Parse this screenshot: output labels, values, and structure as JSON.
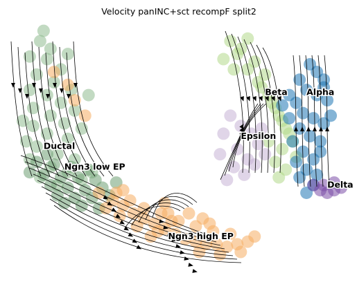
{
  "chart_data": {
    "type": "scatter",
    "title": "Velocity panINC+sct recompF split2",
    "xlabel": "",
    "ylabel": "",
    "xlim": [
      0,
      100
    ],
    "ylim": [
      0,
      100
    ],
    "grid": false,
    "legend": "on data",
    "overlay": "velocity streamlines",
    "clusters": [
      {
        "name": "Ductal",
        "color": "#8fbc8f",
        "label_xy": [
          11,
          49
        ],
        "points": [
          [
            10,
            91
          ],
          [
            7,
            85
          ],
          [
            12,
            84
          ],
          [
            16,
            80
          ],
          [
            9,
            78
          ],
          [
            14,
            75
          ],
          [
            7,
            72
          ],
          [
            19,
            72
          ],
          [
            12,
            70
          ],
          [
            16,
            67
          ],
          [
            8,
            65
          ],
          [
            20,
            64
          ],
          [
            13,
            62
          ],
          [
            17,
            59
          ],
          [
            8,
            58
          ],
          [
            22,
            57
          ],
          [
            12,
            55
          ],
          [
            18,
            53
          ],
          [
            9,
            50
          ],
          [
            15,
            47
          ],
          [
            20,
            45
          ],
          [
            7,
            45
          ],
          [
            13,
            42
          ],
          [
            18,
            40
          ],
          [
            10,
            38
          ],
          [
            22,
            37
          ],
          [
            15,
            35
          ],
          [
            25,
            40
          ],
          [
            5,
            60
          ],
          [
            11,
            95
          ],
          [
            13,
            88
          ],
          [
            18,
            86
          ],
          [
            24,
            70
          ],
          [
            6,
            52
          ]
        ]
      },
      {
        "name": "Ngn3 low EP",
        "color": "#6d9f73",
        "label_xy": [
          17,
          41
        ],
        "points": [
          [
            9,
            44
          ],
          [
            14,
            43
          ],
          [
            19,
            42
          ],
          [
            24,
            41
          ],
          [
            11,
            39
          ],
          [
            16,
            38
          ],
          [
            21,
            38
          ],
          [
            26,
            37
          ],
          [
            13,
            35
          ],
          [
            18,
            34
          ],
          [
            23,
            33
          ],
          [
            28,
            34
          ],
          [
            15,
            31
          ],
          [
            20,
            30
          ],
          [
            25,
            30
          ],
          [
            30,
            31
          ],
          [
            17,
            28
          ],
          [
            22,
            27
          ],
          [
            27,
            26
          ],
          [
            12,
            47
          ],
          [
            7,
            40
          ],
          [
            32,
            36
          ]
        ]
      },
      {
        "name": "Ngn3 high EP",
        "color": "#f5ad62",
        "label_xy": [
          47,
          14
        ],
        "points": [
          [
            14,
            79
          ],
          [
            18,
            74
          ],
          [
            20,
            68
          ],
          [
            23,
            62
          ],
          [
            27,
            32
          ],
          [
            31,
            29
          ],
          [
            34,
            27
          ],
          [
            37,
            24
          ],
          [
            40,
            22
          ],
          [
            43,
            20
          ],
          [
            46,
            18
          ],
          [
            49,
            16
          ],
          [
            52,
            14
          ],
          [
            55,
            13
          ],
          [
            58,
            12
          ],
          [
            61,
            12
          ],
          [
            64,
            11
          ],
          [
            67,
            12
          ],
          [
            70,
            13
          ],
          [
            72,
            15
          ],
          [
            60,
            17
          ],
          [
            55,
            19
          ],
          [
            50,
            21
          ],
          [
            45,
            24
          ],
          [
            40,
            26
          ],
          [
            36,
            29
          ],
          [
            32,
            32
          ],
          [
            46,
            28
          ],
          [
            47,
            24
          ],
          [
            48,
            21
          ],
          [
            44,
            17
          ],
          [
            42,
            15
          ],
          [
            56,
            9
          ],
          [
            62,
            8
          ],
          [
            68,
            9
          ],
          [
            65,
            16
          ],
          [
            59,
            20
          ],
          [
            38,
            19
          ],
          [
            33,
            23
          ],
          [
            29,
            26
          ],
          [
            34,
            33
          ],
          [
            53,
            24
          ],
          [
            57,
            22
          ]
        ]
      },
      {
        "name": "Beta",
        "color": "#b3d98a",
        "label_xy": [
          75,
          70
        ],
        "points": [
          [
            65,
            91
          ],
          [
            67,
            86
          ],
          [
            70,
            80
          ],
          [
            73,
            75
          ],
          [
            76,
            70
          ],
          [
            78,
            65
          ],
          [
            80,
            60
          ],
          [
            82,
            55
          ],
          [
            80,
            49
          ],
          [
            78,
            44
          ],
          [
            81,
            41
          ],
          [
            79,
            38
          ],
          [
            68,
            88
          ],
          [
            72,
            83
          ],
          [
            75,
            78
          ],
          [
            74,
            73
          ],
          [
            77,
            67
          ],
          [
            79,
            62
          ],
          [
            81,
            57
          ],
          [
            83,
            52
          ],
          [
            76,
            52
          ],
          [
            84,
            46
          ],
          [
            70,
            92
          ],
          [
            63,
            84
          ],
          [
            66,
            80
          ]
        ]
      },
      {
        "name": "Epsilon",
        "color": "#c7b3d6",
        "label_xy": [
          68,
          53
        ],
        "points": [
          [
            65,
            62
          ],
          [
            68,
            58
          ],
          [
            71,
            55
          ],
          [
            73,
            51
          ],
          [
            75,
            47
          ],
          [
            70,
            45
          ],
          [
            66,
            42
          ],
          [
            64,
            37
          ],
          [
            69,
            39
          ],
          [
            72,
            43
          ],
          [
            67,
            49
          ],
          [
            63,
            55
          ],
          [
            74,
            57
          ],
          [
            62,
            47
          ]
        ]
      },
      {
        "name": "Alpha",
        "color": "#1f77b4",
        "label_xy": [
          87,
          70
        ],
        "points": [
          [
            88,
            82
          ],
          [
            90,
            79
          ],
          [
            92,
            76
          ],
          [
            85,
            76
          ],
          [
            87,
            72
          ],
          [
            90,
            70
          ],
          [
            93,
            68
          ],
          [
            84,
            67
          ],
          [
            86,
            63
          ],
          [
            89,
            61
          ],
          [
            92,
            59
          ],
          [
            82,
            61
          ],
          [
            85,
            57
          ],
          [
            88,
            54
          ],
          [
            91,
            52
          ],
          [
            83,
            52
          ],
          [
            86,
            48
          ],
          [
            89,
            45
          ],
          [
            87,
            41
          ],
          [
            90,
            39
          ],
          [
            85,
            38
          ],
          [
            89,
            35
          ],
          [
            87,
            32
          ],
          [
            84,
            44
          ],
          [
            91,
            48
          ],
          [
            94,
            62
          ],
          [
            92,
            73
          ],
          [
            82,
            70
          ],
          [
            80,
            66
          ]
        ]
      },
      {
        "name": "Delta",
        "color": "#7b4fa8",
        "label_xy": [
          93,
          34
        ],
        "points": [
          [
            89,
            35
          ],
          [
            91,
            33
          ],
          [
            93,
            32
          ],
          [
            95,
            33
          ],
          [
            97,
            34
          ],
          [
            92,
            35
          ],
          [
            95,
            36
          ]
        ]
      }
    ]
  }
}
